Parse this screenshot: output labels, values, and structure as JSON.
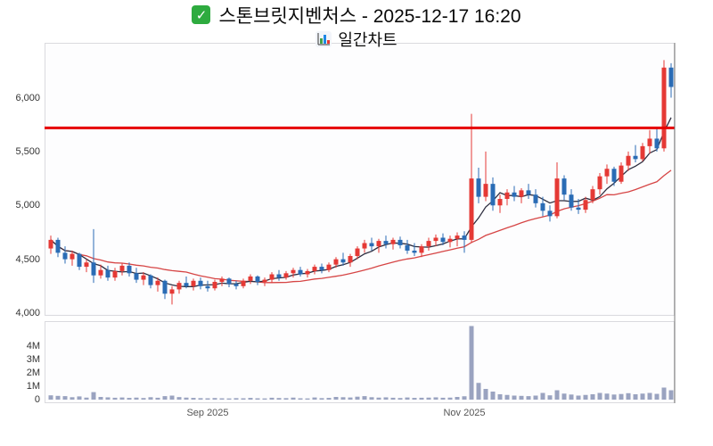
{
  "header": {
    "title": "스톤브릿지벤처스 - 2025-12-17 16:20",
    "subtitle": "일간차트",
    "title_icon": "check-icon",
    "subtitle_icon": "bar-chart-icon"
  },
  "colors": {
    "up": "#e53935",
    "down": "#2a6cb5",
    "resistance": "#e60000",
    "volume": "#9aa3c0",
    "ma_fast": "#2e2e40",
    "ma_slow": "#d64545",
    "axis_text": "#333333"
  },
  "chart_data": {
    "type": "candlestick",
    "title": "스톤브릿지벤처스 - 2025-12-17 16:20",
    "subtitle": "일간차트",
    "price_axis": {
      "ticks": [
        "6,000",
        "5,500",
        "5,000",
        "4,500",
        "4,000"
      ],
      "tick_values": [
        6000,
        5500,
        5000,
        4500,
        4000
      ],
      "min": 3975,
      "max": 6510
    },
    "volume_axis": {
      "ticks": [
        "4M",
        "3M",
        "2M",
        "1M",
        "0"
      ],
      "tick_values": [
        4000000,
        3000000,
        2000000,
        1000000,
        0
      ],
      "max": 5800000
    },
    "x_axis": {
      "ticks": [
        {
          "label": "Sep 2025",
          "index": 22
        },
        {
          "label": "Nov 2025",
          "index": 58
        }
      ]
    },
    "resistance_level": 5720,
    "moving_averages": [
      {
        "name": "MA5",
        "window": 5,
        "color": "#2e2e40"
      },
      {
        "name": "MA20",
        "window": 20,
        "color": "#d64545"
      }
    ],
    "series_format": [
      "open",
      "high",
      "low",
      "close",
      "volume_thousands"
    ],
    "candles": [
      [
        4600,
        4720,
        4550,
        4680,
        320
      ],
      [
        4680,
        4700,
        4520,
        4560,
        280
      ],
      [
        4560,
        4620,
        4460,
        4500,
        260
      ],
      [
        4500,
        4580,
        4440,
        4550,
        180
      ],
      [
        4550,
        4560,
        4400,
        4430,
        240
      ],
      [
        4430,
        4500,
        4380,
        4470,
        150
      ],
      [
        4470,
        4780,
        4280,
        4350,
        560
      ],
      [
        4350,
        4450,
        4320,
        4400,
        200
      ],
      [
        4400,
        4440,
        4300,
        4330,
        170
      ],
      [
        4330,
        4420,
        4300,
        4390,
        140
      ],
      [
        4390,
        4460,
        4350,
        4440,
        160
      ],
      [
        4440,
        4470,
        4340,
        4370,
        130
      ],
      [
        4370,
        4420,
        4280,
        4310,
        150
      ],
      [
        4310,
        4380,
        4260,
        4350,
        120
      ],
      [
        4350,
        4360,
        4230,
        4260,
        180
      ],
      [
        4260,
        4330,
        4200,
        4300,
        140
      ],
      [
        4300,
        4310,
        4130,
        4180,
        260
      ],
      [
        4180,
        4250,
        4080,
        4220,
        300
      ],
      [
        4220,
        4300,
        4180,
        4280,
        190
      ],
      [
        4280,
        4340,
        4230,
        4250,
        150
      ],
      [
        4250,
        4320,
        4210,
        4300,
        130
      ],
      [
        4300,
        4330,
        4220,
        4250,
        110
      ],
      [
        4250,
        4300,
        4200,
        4230,
        100
      ],
      [
        4230,
        4310,
        4210,
        4290,
        120
      ],
      [
        4290,
        4340,
        4250,
        4320,
        100
      ],
      [
        4320,
        4330,
        4240,
        4270,
        90
      ],
      [
        4270,
        4300,
        4220,
        4250,
        110
      ],
      [
        4250,
        4320,
        4230,
        4300,
        100
      ],
      [
        4300,
        4360,
        4270,
        4340,
        130
      ],
      [
        4340,
        4350,
        4260,
        4290,
        100
      ],
      [
        4290,
        4330,
        4250,
        4310,
        90
      ],
      [
        4310,
        4380,
        4280,
        4360,
        140
      ],
      [
        4360,
        4400,
        4300,
        4330,
        120
      ],
      [
        4330,
        4390,
        4310,
        4370,
        110
      ],
      [
        4370,
        4420,
        4330,
        4400,
        150
      ],
      [
        4400,
        4430,
        4340,
        4360,
        100
      ],
      [
        4360,
        4410,
        4330,
        4390,
        90
      ],
      [
        4390,
        4450,
        4360,
        4430,
        160
      ],
      [
        4430,
        4460,
        4370,
        4400,
        110
      ],
      [
        4400,
        4470,
        4380,
        4450,
        130
      ],
      [
        4450,
        4520,
        4420,
        4500,
        200
      ],
      [
        4500,
        4560,
        4440,
        4470,
        180
      ],
      [
        4470,
        4550,
        4430,
        4530,
        160
      ],
      [
        4530,
        4620,
        4500,
        4600,
        220
      ],
      [
        4600,
        4680,
        4560,
        4650,
        260
      ],
      [
        4650,
        4700,
        4580,
        4620,
        180
      ],
      [
        4620,
        4690,
        4560,
        4670,
        150
      ],
      [
        4670,
        4720,
        4600,
        4640,
        170
      ],
      [
        4640,
        4700,
        4590,
        4680,
        140
      ],
      [
        4680,
        4710,
        4600,
        4630,
        120
      ],
      [
        4630,
        4680,
        4550,
        4580,
        160
      ],
      [
        4580,
        4650,
        4530,
        4560,
        130
      ],
      [
        4560,
        4640,
        4520,
        4620,
        140
      ],
      [
        4620,
        4700,
        4580,
        4670,
        150
      ],
      [
        4670,
        4730,
        4620,
        4700,
        170
      ],
      [
        4700,
        4740,
        4630,
        4660,
        140
      ],
      [
        4660,
        4720,
        4610,
        4690,
        150
      ],
      [
        4690,
        4750,
        4620,
        4720,
        200
      ],
      [
        4720,
        4760,
        4560,
        4680,
        250
      ],
      [
        4680,
        5850,
        4650,
        5250,
        5500
      ],
      [
        5250,
        5350,
        5020,
        5080,
        1250
      ],
      [
        5080,
        5500,
        5040,
        5200,
        800
      ],
      [
        5200,
        5260,
        4950,
        5000,
        600
      ],
      [
        5000,
        5100,
        4930,
        5060,
        400
      ],
      [
        5060,
        5150,
        5000,
        5120,
        350
      ],
      [
        5120,
        5180,
        5040,
        5080,
        300
      ],
      [
        5080,
        5160,
        5020,
        5140,
        280
      ],
      [
        5140,
        5200,
        5060,
        5100,
        260
      ],
      [
        5100,
        5150,
        4980,
        5020,
        300
      ],
      [
        5020,
        5080,
        4900,
        4950,
        500
      ],
      [
        4950,
        5000,
        4850,
        4900,
        320
      ],
      [
        4900,
        5400,
        4880,
        5250,
        700
      ],
      [
        5250,
        5280,
        5050,
        5100,
        450
      ],
      [
        5100,
        5150,
        4950,
        4980,
        380
      ],
      [
        4980,
        5060,
        4920,
        4960,
        300
      ],
      [
        4960,
        5080,
        4930,
        5050,
        350
      ],
      [
        5050,
        5180,
        5020,
        5150,
        400
      ],
      [
        5150,
        5300,
        5100,
        5270,
        500
      ],
      [
        5270,
        5380,
        5200,
        5340,
        450
      ],
      [
        5340,
        5360,
        5180,
        5220,
        380
      ],
      [
        5220,
        5400,
        5200,
        5370,
        420
      ],
      [
        5370,
        5500,
        5320,
        5460,
        480
      ],
      [
        5460,
        5560,
        5400,
        5430,
        400
      ],
      [
        5430,
        5580,
        5410,
        5550,
        450
      ],
      [
        5550,
        5700,
        5480,
        5620,
        500
      ],
      [
        5620,
        5730,
        5500,
        5530,
        430
      ],
      [
        5530,
        6350,
        5500,
        6280,
        900
      ],
      [
        6280,
        6320,
        6000,
        6100,
        700
      ]
    ]
  }
}
